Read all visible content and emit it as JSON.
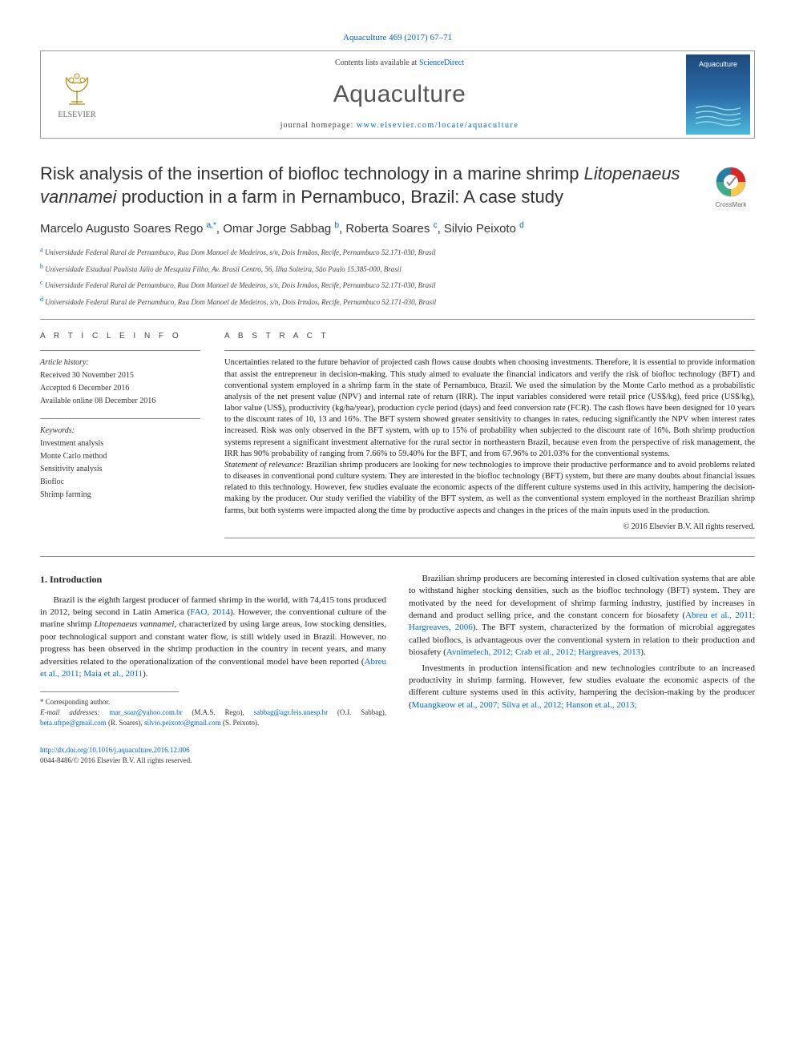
{
  "journal_ref": "Aquaculture 469 (2017) 67–71",
  "header": {
    "contents_prefix": "Contents lists available at ",
    "contents_link": "ScienceDirect",
    "journal_name": "Aquaculture",
    "homepage_prefix": "journal homepage: ",
    "homepage_url": "www.elsevier.com/locate/aquaculture",
    "publisher_name": "ELSEVIER",
    "cover_title": "Aquaculture"
  },
  "title_main": "Risk analysis of the insertion of biofloc technology in a marine shrimp ",
  "title_species": "Litopenaeus vannamei",
  "title_end": " production in a farm in Pernambuco, Brazil: A case study",
  "crossmark_label": "CrossMark",
  "authors_html": "Marcelo Augusto Soares Rego <span class='sup'>a,*</span>, Omar Jorge Sabbag <span class='sup'>b</span>, Roberta Soares <span class='sup'>c</span>, Silvio Peixoto <span class='sup'>d</span>",
  "affiliations": [
    {
      "sup": "a",
      "text": "Universidade Federal Rural de Pernambuco, Rua Dom Manoel de Medeiros, s/n, Dois Irmãos, Recife, Pernambuco 52.171-030, Brasil"
    },
    {
      "sup": "b",
      "text": "Universidade Estadual Paulista Júlio de Mesquita Filho, Av. Brasil Centro, 56, Ilha Solteira, São Paulo 15.385-000, Brasil"
    },
    {
      "sup": "c",
      "text": "Universidade Federal Rural de Pernambuco, Rua Dom Manoel de Medeiros, s/n, Dois Irmãos, Recife, Pernambuco 52.171-030, Brasil"
    },
    {
      "sup": "d",
      "text": "Universidade Federal Rural de Pernambuco, Rua Dom Manoel de Medeiros, s/n, Dois Irmãos, Recife, Pernambuco 52.171-030, Brasil"
    }
  ],
  "article_info": {
    "heading": "a r t i c l e   i n f o",
    "history_label": "Article history:",
    "received": "Received 30 November 2015",
    "accepted": "Accepted 6 December 2016",
    "online": "Available online 08 December 2016",
    "keywords_label": "Keywords:",
    "keywords": [
      "Investment analysis",
      "Monte Carlo method",
      "Sensitivity analysis",
      "Biofloc",
      "Shrimp farming"
    ]
  },
  "abstract": {
    "heading": "a b s t r a c t",
    "text": "Uncertainties related to the future behavior of projected cash flows cause doubts when choosing investments. Therefore, it is essential to provide information that assist the entrepreneur in decision-making. This study aimed to evaluate the financial indicators and verify the risk of biofloc technology (BFT) and conventional system employed in a shrimp farm in the state of Pernambuco, Brazil. We used the simulation by the Monte Carlo method as a probabilistic analysis of the net present value (NPV) and internal rate of return (IRR). The input variables considered were retail price (US$/kg), feed price (US$/kg), labor value (US$), productivity (kg/ha/year), production cycle period (days) and feed conversion rate (FCR). The cash flows have been designed for 10 years to the discount rates of 10, 13 and 16%. The BFT system showed greater sensitivity to changes in rates, reducing significantly the NPV when interest rates increased. Risk was only observed in the BFT system, with up to 15% of probability when subjected to the discount rate of 16%. Both shrimp production systems represent a significant investment alternative for the rural sector in northeastern Brazil, because even from the perspective of risk management, the IRR has 90% probability of ranging from 7.66% to 59.40% for the BFT, and from 67.96% to 201.03% for the conventional systems.",
    "relevance_label": "Statement of relevance:",
    "relevance_text": " Brazilian shrimp producers are looking for new technologies to improve their productive performance and to avoid problems related to diseases in conventional pond culture system. They are interested in the biofloc technology (BFT) system, but there are many doubts about financial issues related to this technology. However, few studies evaluate the economic aspects of the different culture systems used in this activity, hampering the decision-making by the producer. Our study verified the viability of the BFT system, as well as the conventional system employed in the northeast Brazilian shrimp farms, but both systems were impacted along the time by productive aspects and changes in the prices of the main inputs used in the production.",
    "copyright": "© 2016 Elsevier B.V. All rights reserved."
  },
  "intro": {
    "heading": "1. Introduction",
    "p1a": "Brazil is the eighth largest producer of farmed shrimp in the world, with 74,415 tons produced in 2012, being second in Latin America (",
    "p1_cite1": "FAO, 2014",
    "p1b": "). However, the conventional culture of the marine shrimp ",
    "p1_species": "Litopenaeus vannamei",
    "p1c": ", characterized by using large areas, low stocking densities, poor technological support and constant water flow, is still widely used in Brazil. However, no progress has been observed in the shrimp production in the country in recent years, and many adversities related to the operationalization of the conventional model have been reported (",
    "p1_cite2": "Abreu et al., 2011; Maia et al., 2011",
    "p1d": ").",
    "p2a": "Brazilian shrimp producers are becoming interested in closed cultivation systems that are able to withstand higher stocking densities, such as the biofloc technology (BFT) system. They are motivated by the need for development of shrimp farming industry, justified by increases in demand and product selling price, and the constant concern for biosafety (",
    "p2_cite1": "Abreu et al., 2011; Hargreaves, 2006",
    "p2b": "). The BFT system, characterized by the formation of microbial aggregates called bioflocs, is advantageous over the conventional system in relation to their production and biosafety (",
    "p2_cite2": "Avnimelech, 2012; Crab et al., 2012; Hargreaves, 2013",
    "p2c": ").",
    "p3a": "Investments in production intensification and new technologies contribute to an increased productivity in shrimp farming. However, few studies evaluate the economic aspects of the different culture systems used in this activity, hampering the decision-making by the producer (",
    "p3_cite1": "Muangkeow et al., 2007; Silva et al., 2012; Hanson et al., 2013;",
    "p3b": ""
  },
  "footnotes": {
    "corresponding": "* Corresponding author.",
    "emails_label": "E-mail addresses: ",
    "emails": [
      {
        "addr": "mar_soar@yahoo.com.br",
        "who": " (M.A.S. Rego), "
      },
      {
        "addr": "sabbag@agr.feis.unesp.br",
        "who": " (O.J. Sabbag), "
      },
      {
        "addr": "beta.ufrpe@gmail.com",
        "who": " (R. Soares), "
      },
      {
        "addr": "silvio.peixoto@gmail.com",
        "who": " (S. Peixoto)."
      }
    ]
  },
  "footer": {
    "doi": "http://dx.doi.org/10.1016/j.aquaculture.2016.12.006",
    "issn_line": "0044-8486/© 2016 Elsevier B.V. All rights reserved."
  },
  "colors": {
    "link": "#0066cc",
    "text": "#222222",
    "rule": "#888888",
    "cover_top": "#1e4a7a",
    "cover_bottom": "#4db8d8"
  }
}
